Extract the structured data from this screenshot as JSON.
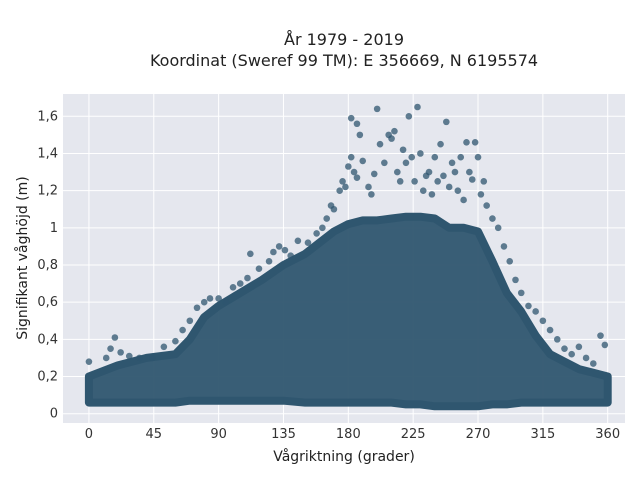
{
  "chart_data": {
    "type": "scatter",
    "title_line1": "År 1979 - 2019",
    "title_line2": "Koordinat (Sweref 99 TM): E 356669, N 6195574",
    "xlabel": "Vågriktning (grader)",
    "ylabel": "Signifikant våghöjd (m)",
    "xlim": [
      -18,
      372
    ],
    "ylim": [
      -0.05,
      1.72
    ],
    "x_ticks": [
      0,
      45,
      90,
      135,
      180,
      225,
      270,
      315,
      360
    ],
    "y_ticks": [
      0,
      0.2,
      0.4,
      0.6,
      0.8,
      1.0,
      1.2,
      1.4,
      1.6
    ],
    "y_tick_labels": [
      "0",
      "0,2",
      "0,4",
      "0,6",
      "0,8",
      "1",
      "1,2",
      "1,4",
      "1,6"
    ],
    "grid": true,
    "colors": {
      "background": "#e5e7ee",
      "grid": "#ffffff",
      "marker": "#2f566f"
    },
    "envelope": {
      "x": [
        0,
        20,
        40,
        60,
        70,
        80,
        90,
        105,
        120,
        135,
        150,
        160,
        170,
        180,
        190,
        200,
        210,
        220,
        230,
        240,
        250,
        260,
        270,
        280,
        290,
        300,
        310,
        320,
        330,
        340,
        350,
        360
      ],
      "upper": [
        0.2,
        0.26,
        0.3,
        0.32,
        0.4,
        0.52,
        0.58,
        0.65,
        0.72,
        0.8,
        0.86,
        0.92,
        0.98,
        1.02,
        1.04,
        1.04,
        1.05,
        1.06,
        1.06,
        1.05,
        1.0,
        1.0,
        0.98,
        0.82,
        0.65,
        0.55,
        0.42,
        0.32,
        0.28,
        0.24,
        0.22,
        0.2
      ],
      "lower": [
        0.06,
        0.06,
        0.06,
        0.06,
        0.07,
        0.07,
        0.07,
        0.07,
        0.07,
        0.07,
        0.06,
        0.06,
        0.06,
        0.06,
        0.06,
        0.06,
        0.06,
        0.05,
        0.05,
        0.04,
        0.04,
        0.04,
        0.04,
        0.05,
        0.05,
        0.06,
        0.06,
        0.06,
        0.06,
        0.06,
        0.06,
        0.06
      ]
    },
    "points": [
      [
        0,
        0.28
      ],
      [
        12,
        0.3
      ],
      [
        15,
        0.35
      ],
      [
        18,
        0.41
      ],
      [
        22,
        0.33
      ],
      [
        28,
        0.31
      ],
      [
        35,
        0.3
      ],
      [
        44,
        0.3
      ],
      [
        52,
        0.36
      ],
      [
        60,
        0.39
      ],
      [
        65,
        0.45
      ],
      [
        70,
        0.5
      ],
      [
        75,
        0.57
      ],
      [
        80,
        0.6
      ],
      [
        84,
        0.62
      ],
      [
        90,
        0.62
      ],
      [
        95,
        0.6
      ],
      [
        100,
        0.68
      ],
      [
        105,
        0.7
      ],
      [
        110,
        0.73
      ],
      [
        112,
        0.86
      ],
      [
        118,
        0.78
      ],
      [
        125,
        0.82
      ],
      [
        128,
        0.87
      ],
      [
        132,
        0.9
      ],
      [
        136,
        0.88
      ],
      [
        140,
        0.85
      ],
      [
        145,
        0.93
      ],
      [
        152,
        0.92
      ],
      [
        158,
        0.97
      ],
      [
        162,
        1.0
      ],
      [
        165,
        1.05
      ],
      [
        168,
        1.12
      ],
      [
        170,
        1.1
      ],
      [
        174,
        1.2
      ],
      [
        176,
        1.25
      ],
      [
        178,
        1.22
      ],
      [
        180,
        1.33
      ],
      [
        182,
        1.38
      ],
      [
        184,
        1.3
      ],
      [
        186,
        1.27
      ],
      [
        188,
        1.5
      ],
      [
        186,
        1.56
      ],
      [
        182,
        1.59
      ],
      [
        190,
        1.36
      ],
      [
        194,
        1.22
      ],
      [
        196,
        1.18
      ],
      [
        198,
        1.29
      ],
      [
        200,
        1.64
      ],
      [
        202,
        1.45
      ],
      [
        205,
        1.35
      ],
      [
        208,
        1.5
      ],
      [
        210,
        1.48
      ],
      [
        212,
        1.52
      ],
      [
        214,
        1.3
      ],
      [
        216,
        1.25
      ],
      [
        218,
        1.42
      ],
      [
        220,
        1.35
      ],
      [
        222,
        1.6
      ],
      [
        224,
        1.38
      ],
      [
        226,
        1.25
      ],
      [
        228,
        1.65
      ],
      [
        230,
        1.4
      ],
      [
        232,
        1.2
      ],
      [
        234,
        1.28
      ],
      [
        236,
        1.3
      ],
      [
        238,
        1.18
      ],
      [
        240,
        1.38
      ],
      [
        242,
        1.25
      ],
      [
        244,
        1.45
      ],
      [
        246,
        1.28
      ],
      [
        248,
        1.57
      ],
      [
        250,
        1.22
      ],
      [
        252,
        1.35
      ],
      [
        254,
        1.3
      ],
      [
        256,
        1.2
      ],
      [
        258,
        1.38
      ],
      [
        260,
        1.15
      ],
      [
        262,
        1.46
      ],
      [
        264,
        1.3
      ],
      [
        266,
        1.26
      ],
      [
        268,
        1.46
      ],
      [
        270,
        1.38
      ],
      [
        272,
        1.18
      ],
      [
        274,
        1.25
      ],
      [
        276,
        1.12
      ],
      [
        280,
        1.05
      ],
      [
        284,
        1.0
      ],
      [
        288,
        0.9
      ],
      [
        292,
        0.82
      ],
      [
        296,
        0.72
      ],
      [
        300,
        0.65
      ],
      [
        305,
        0.58
      ],
      [
        310,
        0.55
      ],
      [
        315,
        0.5
      ],
      [
        320,
        0.45
      ],
      [
        325,
        0.4
      ],
      [
        330,
        0.35
      ],
      [
        335,
        0.32
      ],
      [
        340,
        0.36
      ],
      [
        345,
        0.3
      ],
      [
        350,
        0.27
      ],
      [
        355,
        0.42
      ],
      [
        358,
        0.37
      ]
    ]
  }
}
